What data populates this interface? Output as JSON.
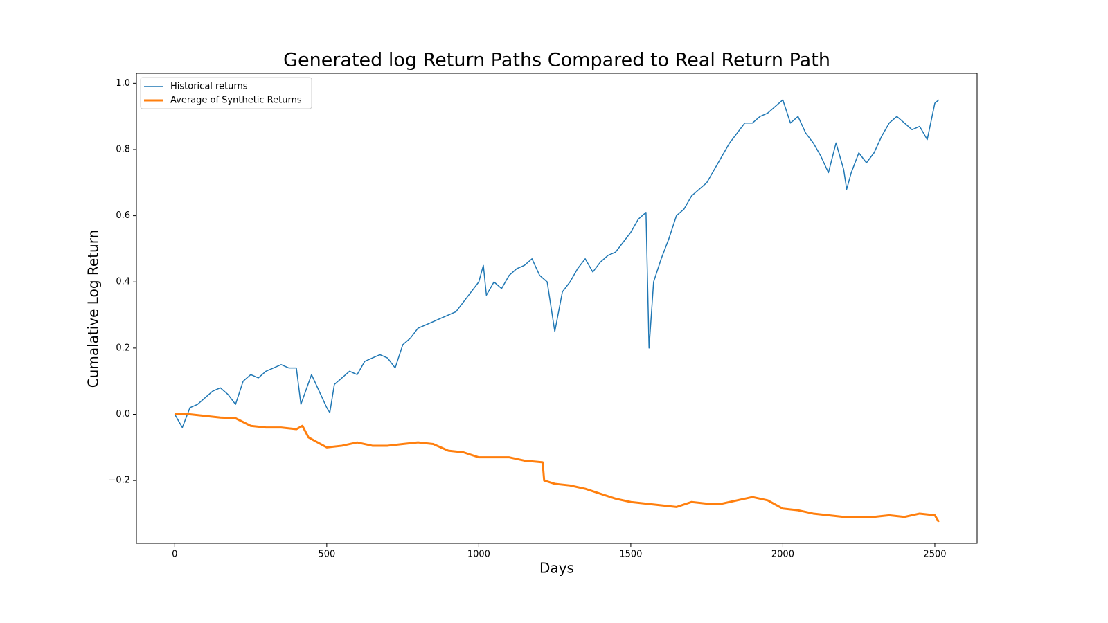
{
  "chart_data": {
    "type": "line",
    "title": "Generated log Return Paths Compared to Real Return Path",
    "xlabel": "Days",
    "ylabel": "Cumalative Log Return",
    "xlim": [
      -126,
      2639
    ],
    "ylim": [
      -0.39,
      1.03
    ],
    "xticks": [
      0,
      500,
      1000,
      1500,
      2000,
      2500
    ],
    "yticks": [
      {
        "value": -0.2,
        "label": "−0.2"
      },
      {
        "value": 0,
        "label": "0.0"
      },
      0.2,
      0.4,
      0.6,
      0.8,
      {
        "value": 1,
        "label": "1.0"
      }
    ],
    "legend": "upper left",
    "series": [
      {
        "name": "Historical returns",
        "color": "#1f77b4",
        "linewidth": 1.5,
        "x": [
          0,
          25,
          50,
          75,
          100,
          125,
          150,
          175,
          200,
          225,
          250,
          275,
          300,
          325,
          350,
          375,
          400,
          415,
          450,
          475,
          500,
          510,
          525,
          550,
          575,
          600,
          625,
          650,
          675,
          700,
          725,
          750,
          775,
          800,
          825,
          850,
          875,
          900,
          925,
          950,
          975,
          1000,
          1015,
          1025,
          1050,
          1075,
          1100,
          1125,
          1150,
          1175,
          1200,
          1225,
          1250,
          1275,
          1300,
          1325,
          1350,
          1375,
          1400,
          1425,
          1450,
          1475,
          1500,
          1525,
          1550,
          1560,
          1575,
          1600,
          1625,
          1650,
          1675,
          1700,
          1725,
          1750,
          1775,
          1800,
          1825,
          1850,
          1875,
          1900,
          1925,
          1950,
          1975,
          2000,
          2025,
          2050,
          2075,
          2100,
          2125,
          2150,
          2175,
          2200,
          2210,
          2225,
          2250,
          2275,
          2300,
          2325,
          2350,
          2375,
          2400,
          2425,
          2450,
          2475,
          2500,
          2513
        ],
        "values": [
          0,
          -0.04,
          0.02,
          0.03,
          0.05,
          0.07,
          0.08,
          0.06,
          0.03,
          0.1,
          0.12,
          0.11,
          0.13,
          0.14,
          0.15,
          0.14,
          0.14,
          0.03,
          0.12,
          0.07,
          0.02,
          0.005,
          0.09,
          0.11,
          0.13,
          0.12,
          0.16,
          0.17,
          0.18,
          0.17,
          0.14,
          0.21,
          0.23,
          0.26,
          0.27,
          0.28,
          0.29,
          0.3,
          0.31,
          0.34,
          0.37,
          0.4,
          0.45,
          0.36,
          0.4,
          0.38,
          0.42,
          0.44,
          0.45,
          0.47,
          0.42,
          0.4,
          0.25,
          0.37,
          0.4,
          0.44,
          0.47,
          0.43,
          0.46,
          0.48,
          0.49,
          0.52,
          0.55,
          0.59,
          0.61,
          0.2,
          0.4,
          0.47,
          0.53,
          0.6,
          0.62,
          0.66,
          0.68,
          0.7,
          0.74,
          0.78,
          0.82,
          0.85,
          0.88,
          0.88,
          0.9,
          0.91,
          0.93,
          0.95,
          0.88,
          0.9,
          0.85,
          0.82,
          0.78,
          0.73,
          0.82,
          0.74,
          0.68,
          0.73,
          0.79,
          0.76,
          0.79,
          0.84,
          0.88,
          0.9,
          0.88,
          0.86,
          0.87,
          0.83,
          0.94,
          0.95
        ]
      },
      {
        "name": "Average of Synthetic Returns",
        "color": "#ff7f0e",
        "linewidth": 3,
        "x": [
          0,
          50,
          100,
          150,
          200,
          250,
          300,
          350,
          400,
          420,
          440,
          500,
          550,
          600,
          650,
          700,
          750,
          800,
          850,
          900,
          950,
          1000,
          1050,
          1100,
          1150,
          1210,
          1215,
          1250,
          1300,
          1350,
          1400,
          1450,
          1500,
          1550,
          1600,
          1650,
          1700,
          1750,
          1800,
          1850,
          1900,
          1950,
          2000,
          2050,
          2100,
          2150,
          2200,
          2250,
          2300,
          2350,
          2400,
          2450,
          2500,
          2513
        ],
        "values": [
          0,
          0,
          -0.005,
          -0.01,
          -0.012,
          -0.035,
          -0.04,
          -0.04,
          -0.045,
          -0.035,
          -0.07,
          -0.1,
          -0.095,
          -0.085,
          -0.095,
          -0.095,
          -0.09,
          -0.085,
          -0.09,
          -0.11,
          -0.115,
          -0.13,
          -0.13,
          -0.13,
          -0.14,
          -0.145,
          -0.2,
          -0.21,
          -0.215,
          -0.225,
          -0.24,
          -0.255,
          -0.265,
          -0.27,
          -0.275,
          -0.28,
          -0.265,
          -0.27,
          -0.27,
          -0.26,
          -0.25,
          -0.26,
          -0.285,
          -0.29,
          -0.3,
          -0.305,
          -0.31,
          -0.31,
          -0.31,
          -0.305,
          -0.31,
          -0.3,
          -0.305,
          -0.325
        ]
      }
    ]
  }
}
